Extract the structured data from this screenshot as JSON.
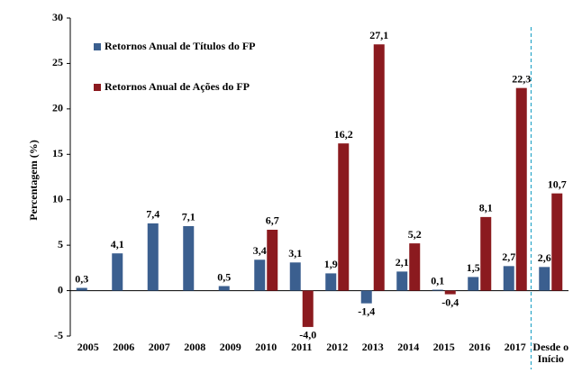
{
  "chart_data": {
    "type": "bar",
    "ylabel": "Percentagem (%)",
    "categories": [
      "2005",
      "2006",
      "2007",
      "2008",
      "2009",
      "2010",
      "2011",
      "2012",
      "2013",
      "2014",
      "2015",
      "2016",
      "2017",
      "Desde o Início"
    ],
    "series": [
      {
        "name": "Retornos Anual de Títulos do FP",
        "color": "#3b5f8f",
        "values": [
          0.3,
          4.1,
          7.4,
          7.1,
          0.5,
          3.4,
          3.1,
          1.9,
          -1.4,
          2.1,
          0.1,
          1.5,
          2.7,
          2.6
        ],
        "value_labels": [
          "0,3",
          "4,1",
          "7,4",
          "7,1",
          "0,5",
          "3,4",
          "3,1",
          "1,9",
          "-1,4",
          "2,1",
          "0,1",
          "1,5",
          "2,7",
          "2,6"
        ]
      },
      {
        "name": "Retornos Anual de Ações do FP",
        "color": "#8b1a1f",
        "values": [
          null,
          null,
          null,
          null,
          null,
          6.7,
          -4.0,
          16.2,
          27.1,
          5.2,
          -0.4,
          8.1,
          22.3,
          10.7
        ],
        "value_labels": [
          null,
          null,
          null,
          null,
          null,
          "6,7",
          "-4,0",
          "16,2",
          "27,1",
          "5,2",
          "-0,4",
          "8,1",
          "22,3",
          "10,7"
        ]
      }
    ],
    "ylim": [
      -5,
      30
    ],
    "yticks": [
      -5,
      0,
      5,
      10,
      15,
      20,
      25,
      30
    ],
    "grid": false,
    "legend": "upper left"
  }
}
